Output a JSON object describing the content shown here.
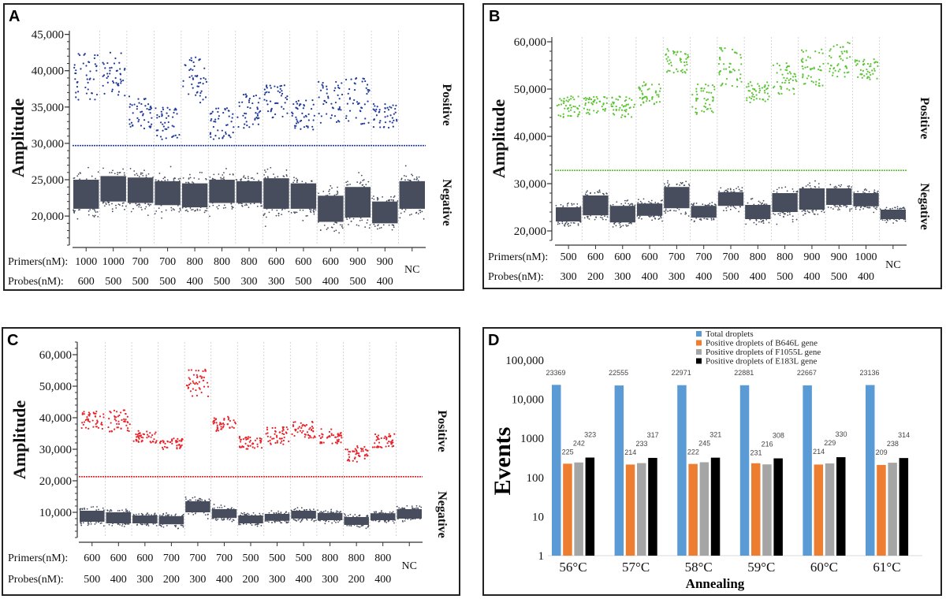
{
  "colors": {
    "A": "#1f3a9a",
    "B": "#5cc434",
    "C": "#e8232a",
    "negative": "#474d5c",
    "total": "#5b9bd5",
    "b646l": "#ed7d31",
    "f1055l": "#a5a5a5",
    "e183l": "#000000"
  },
  "chart_data": [
    {
      "panel": "A",
      "type": "scatter",
      "ylabel": "Amplitude",
      "ylim": [
        16000,
        45500
      ],
      "yticks": [
        "20,000",
        "25,000",
        "30,000",
        "35,000",
        "40,000",
        "45,000"
      ],
      "ytick_values": [
        20000,
        25000,
        30000,
        35000,
        40000,
        45000
      ],
      "threshold": 29700,
      "positive_label": "Positive",
      "negative_label": "Negative",
      "primers_label": "Primers(nM):",
      "probes_label": "Probes(nM):",
      "wells": [
        {
          "primers": "1000",
          "probes": "600",
          "positive": [
            36000,
            42500
          ],
          "negative": [
            21000,
            25000
          ]
        },
        {
          "primers": "1000",
          "probes": "500",
          "positive": [
            36500,
            42500
          ],
          "negative": [
            22000,
            25500
          ]
        },
        {
          "primers": "700",
          "probes": "500",
          "positive": [
            32000,
            36500
          ],
          "negative": [
            21800,
            25300
          ]
        },
        {
          "primers": "700",
          "probes": "500",
          "positive": [
            30500,
            35000
          ],
          "negative": [
            21500,
            24800
          ]
        },
        {
          "primers": "800",
          "probes": "400",
          "positive": [
            35500,
            42000
          ],
          "negative": [
            21200,
            24500
          ]
        },
        {
          "primers": "800",
          "probes": "500",
          "positive": [
            30500,
            35000
          ],
          "negative": [
            21800,
            25000
          ]
        },
        {
          "primers": "800",
          "probes": "300",
          "positive": [
            32000,
            37000
          ],
          "negative": [
            21800,
            24800
          ]
        },
        {
          "primers": "600",
          "probes": "300",
          "positive": [
            33500,
            38000
          ],
          "negative": [
            21000,
            25200
          ]
        },
        {
          "primers": "600",
          "probes": "500",
          "positive": [
            31500,
            36000
          ],
          "negative": [
            21000,
            24500
          ]
        },
        {
          "primers": "600",
          "probes": "400",
          "positive": [
            32500,
            38500
          ],
          "negative": [
            19200,
            22800
          ]
        },
        {
          "primers": "900",
          "probes": "500",
          "positive": [
            32500,
            39000
          ],
          "negative": [
            19800,
            24000
          ]
        },
        {
          "primers": "900",
          "probes": "400",
          "positive": [
            32000,
            35500
          ],
          "negative": [
            19000,
            22000
          ]
        },
        {
          "primers": "NC",
          "probes": "",
          "positive": null,
          "negative": [
            21000,
            24800
          ]
        }
      ]
    },
    {
      "panel": "B",
      "type": "scatter",
      "ylabel": "Amplitude",
      "ylim": [
        18000,
        61000
      ],
      "yticks": [
        "20,000",
        "30,000",
        "40,000",
        "50,000",
        "60,000"
      ],
      "ytick_values": [
        20000,
        30000,
        40000,
        50000,
        60000
      ],
      "threshold": 32800,
      "positive_label": "Positive",
      "negative_label": "Negative",
      "primers_label": "Primers(nM):",
      "probes_label": "Probes(nM):",
      "wells": [
        {
          "primers": "500",
          "probes": "300",
          "positive": [
            44000,
            48500
          ],
          "negative": [
            22000,
            25000
          ]
        },
        {
          "primers": "600",
          "probes": "200",
          "positive": [
            44500,
            48500
          ],
          "negative": [
            23300,
            27500
          ]
        },
        {
          "primers": "600",
          "probes": "300",
          "positive": [
            44000,
            48500
          ],
          "negative": [
            21800,
            25300
          ]
        },
        {
          "primers": "600",
          "probes": "400",
          "positive": [
            46500,
            51500
          ],
          "negative": [
            23200,
            25800
          ]
        },
        {
          "primers": "700",
          "probes": "300",
          "positive": [
            53000,
            58500
          ],
          "negative": [
            24800,
            29300
          ]
        },
        {
          "primers": "700",
          "probes": "400",
          "positive": [
            44500,
            51000
          ],
          "negative": [
            22800,
            25300
          ]
        },
        {
          "primers": "700",
          "probes": "500",
          "positive": [
            50500,
            59000
          ],
          "negative": [
            25300,
            28200
          ]
        },
        {
          "primers": "800",
          "probes": "400",
          "positive": [
            47000,
            51500
          ],
          "negative": [
            22500,
            25500
          ]
        },
        {
          "primers": "800",
          "probes": "500",
          "positive": [
            48500,
            55500
          ],
          "negative": [
            24000,
            28000
          ]
        },
        {
          "primers": "900",
          "probes": "400",
          "positive": [
            50500,
            58500
          ],
          "negative": [
            24500,
            29000
          ]
        },
        {
          "primers": "900",
          "probes": "500",
          "positive": [
            52500,
            60000
          ],
          "negative": [
            25500,
            29000
          ]
        },
        {
          "primers": "1000",
          "probes": "400",
          "positive": [
            52000,
            56500
          ],
          "negative": [
            25200,
            28000
          ]
        },
        {
          "primers": "NC",
          "probes": "",
          "positive": null,
          "negative": [
            22500,
            24500
          ]
        }
      ]
    },
    {
      "panel": "C",
      "type": "scatter",
      "ylabel": "Amplitude",
      "ylim": [
        2000,
        64000
      ],
      "yticks": [
        "10,000",
        "20,000",
        "30,000",
        "40,000",
        "50,000",
        "60,000"
      ],
      "ytick_values": [
        10000,
        20000,
        30000,
        40000,
        50000,
        60000
      ],
      "threshold": 21300,
      "positive_label": "Positive",
      "negative_label": "Negative",
      "primers_label": "Primers(nM):",
      "probes_label": "Probes(nM):",
      "wells": [
        {
          "primers": "600",
          "probes": "500",
          "positive": [
            36500,
            42000
          ],
          "negative": [
            7000,
            10500
          ]
        },
        {
          "primers": "600",
          "probes": "400",
          "positive": [
            35500,
            42500
          ],
          "negative": [
            6500,
            10000
          ]
        },
        {
          "primers": "600",
          "probes": "300",
          "positive": [
            32000,
            36000
          ],
          "negative": [
            6500,
            9000
          ]
        },
        {
          "primers": "700",
          "probes": "200",
          "positive": [
            29500,
            33500
          ],
          "negative": [
            6200,
            8800
          ]
        },
        {
          "primers": "700",
          "probes": "300",
          "positive": [
            46500,
            55500
          ],
          "negative": [
            10000,
            13500
          ]
        },
        {
          "primers": "700",
          "probes": "400",
          "positive": [
            35500,
            40500
          ],
          "negative": [
            8200,
            11000
          ]
        },
        {
          "primers": "500",
          "probes": "200",
          "positive": [
            30000,
            34000
          ],
          "negative": [
            6500,
            9000
          ]
        },
        {
          "primers": "500",
          "probes": "300",
          "positive": [
            31500,
            37000
          ],
          "negative": [
            7300,
            9500
          ]
        },
        {
          "primers": "500",
          "probes": "400",
          "positive": [
            33500,
            39000
          ],
          "negative": [
            8000,
            10500
          ]
        },
        {
          "primers": "800",
          "probes": "300",
          "positive": [
            31500,
            36500
          ],
          "negative": [
            7500,
            9800
          ]
        },
        {
          "primers": "800",
          "probes": "200",
          "positive": [
            26000,
            31000
          ],
          "negative": [
            6000,
            8500
          ]
        },
        {
          "primers": "800",
          "probes": "400",
          "positive": [
            30500,
            35000
          ],
          "negative": [
            7500,
            9700
          ]
        },
        {
          "primers": "NC",
          "probes": "",
          "positive": null,
          "negative": [
            8000,
            11000
          ]
        }
      ]
    },
    {
      "panel": "D",
      "type": "bar",
      "yscale": "log",
      "ylabel": "Events",
      "xlabel": "Annealing",
      "ylim": [
        1,
        100000
      ],
      "yticks": [
        "1",
        "10",
        "100",
        "1000",
        "10,000",
        "100,000"
      ],
      "ytick_values": [
        1,
        10,
        100,
        1000,
        10000,
        100000
      ],
      "categories": [
        "56°C",
        "57°C",
        "58°C",
        "59°C",
        "60°C",
        "61°C"
      ],
      "legend_position": "top-right",
      "series": [
        {
          "name": "Total droplets",
          "values": [
            23369,
            22555,
            22971,
            22881,
            22667,
            23136
          ]
        },
        {
          "name": "Positive droplets of B646L gene",
          "values": [
            225,
            214,
            222,
            231,
            214,
            209
          ]
        },
        {
          "name": "Positive droplets of F1055L gene",
          "values": [
            242,
            233,
            245,
            216,
            229,
            238
          ]
        },
        {
          "name": "Positive droplets of E183L gene",
          "values": [
            323,
            317,
            321,
            308,
            330,
            314
          ]
        }
      ]
    }
  ]
}
